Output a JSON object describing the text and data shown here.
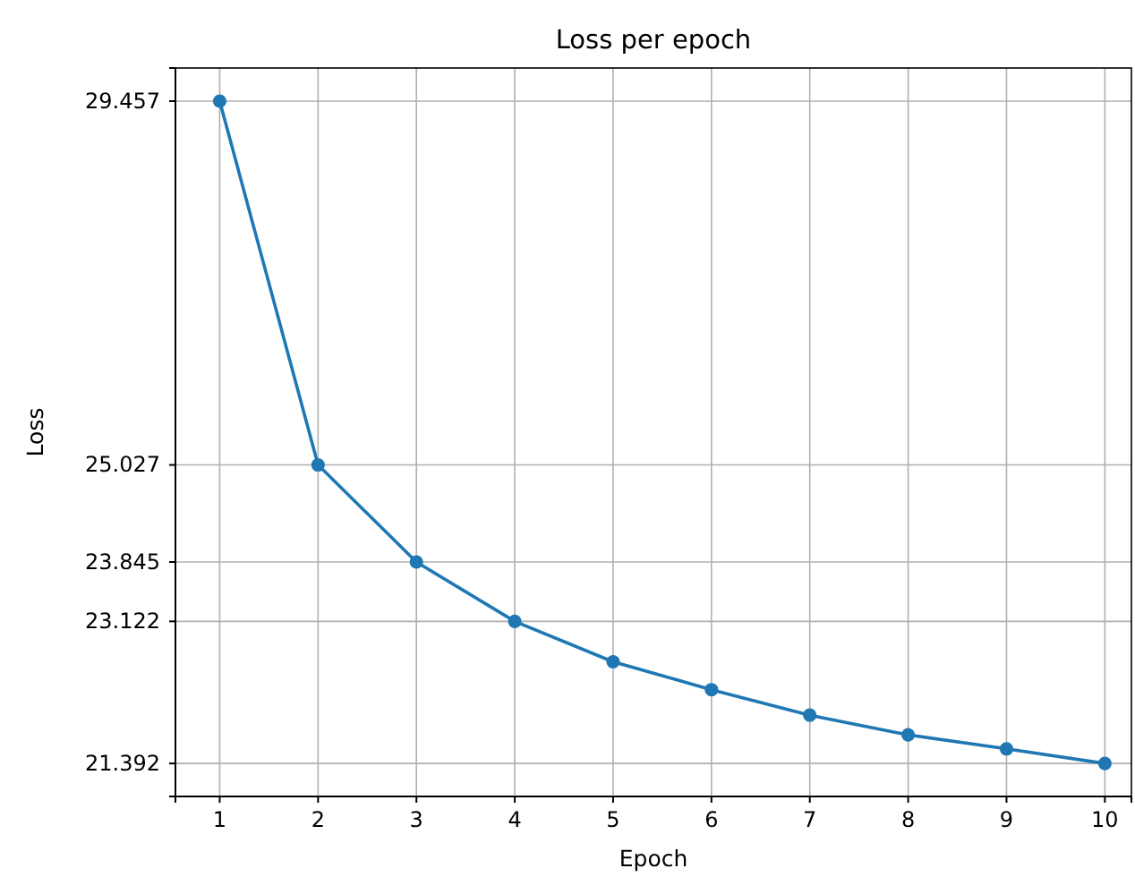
{
  "chart_data": {
    "type": "line",
    "title": "Loss per epoch",
    "xlabel": "Epoch",
    "ylabel": "Loss",
    "x": [
      1,
      2,
      3,
      4,
      5,
      6,
      7,
      8,
      9,
      10
    ],
    "series": [
      {
        "color": "#1f77b4",
        "values": [
          29.457,
          25.027,
          23.845,
          23.122,
          22.63,
          22.29,
          21.98,
          21.74,
          21.57,
          21.392
        ]
      }
    ],
    "xlim": [
      0.55,
      10.27
    ],
    "ylim": [
      20.99,
      29.86
    ],
    "xticks": [
      1,
      2,
      3,
      4,
      5,
      6,
      7,
      8,
      9,
      10
    ],
    "yticks": [
      21.392,
      23.122,
      23.845,
      25.027,
      29.457
    ],
    "grid": true,
    "marker": "circle",
    "line_style": "solid"
  }
}
